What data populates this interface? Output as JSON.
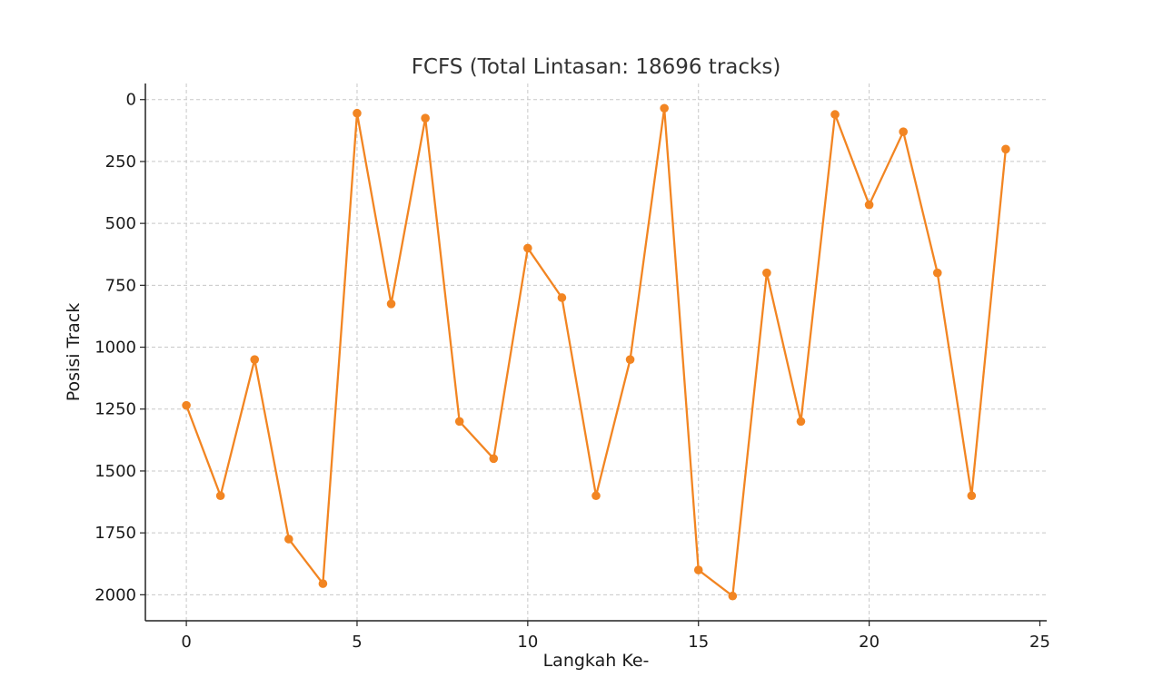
{
  "chart_data": {
    "type": "line",
    "title": "FCFS (Total Lintasan: 18696 tracks)",
    "xlabel": "Langkah Ke-",
    "ylabel": "Posisi Track",
    "xlim": [
      -1.2,
      25.2
    ],
    "ylim": [
      2105,
      -65
    ],
    "y_inverted": true,
    "xticks": [
      0,
      5,
      10,
      15,
      20,
      25
    ],
    "yticks": [
      0,
      250,
      500,
      750,
      1000,
      1250,
      1500,
      1750,
      2000
    ],
    "grid": true,
    "line_color": "#f28522",
    "series": [
      {
        "x": [
          0,
          1,
          2,
          3,
          4,
          5,
          6,
          7,
          8,
          9,
          10,
          11,
          12,
          13,
          14,
          15,
          16,
          17,
          18,
          19,
          20,
          21,
          22,
          23,
          24
        ],
        "values": [
          1235,
          1600,
          1050,
          1775,
          1955,
          55,
          825,
          75,
          1300,
          1450,
          600,
          800,
          1600,
          1050,
          35,
          1900,
          2005,
          700,
          1300,
          60,
          425,
          130,
          700,
          1600,
          200
        ]
      }
    ]
  }
}
